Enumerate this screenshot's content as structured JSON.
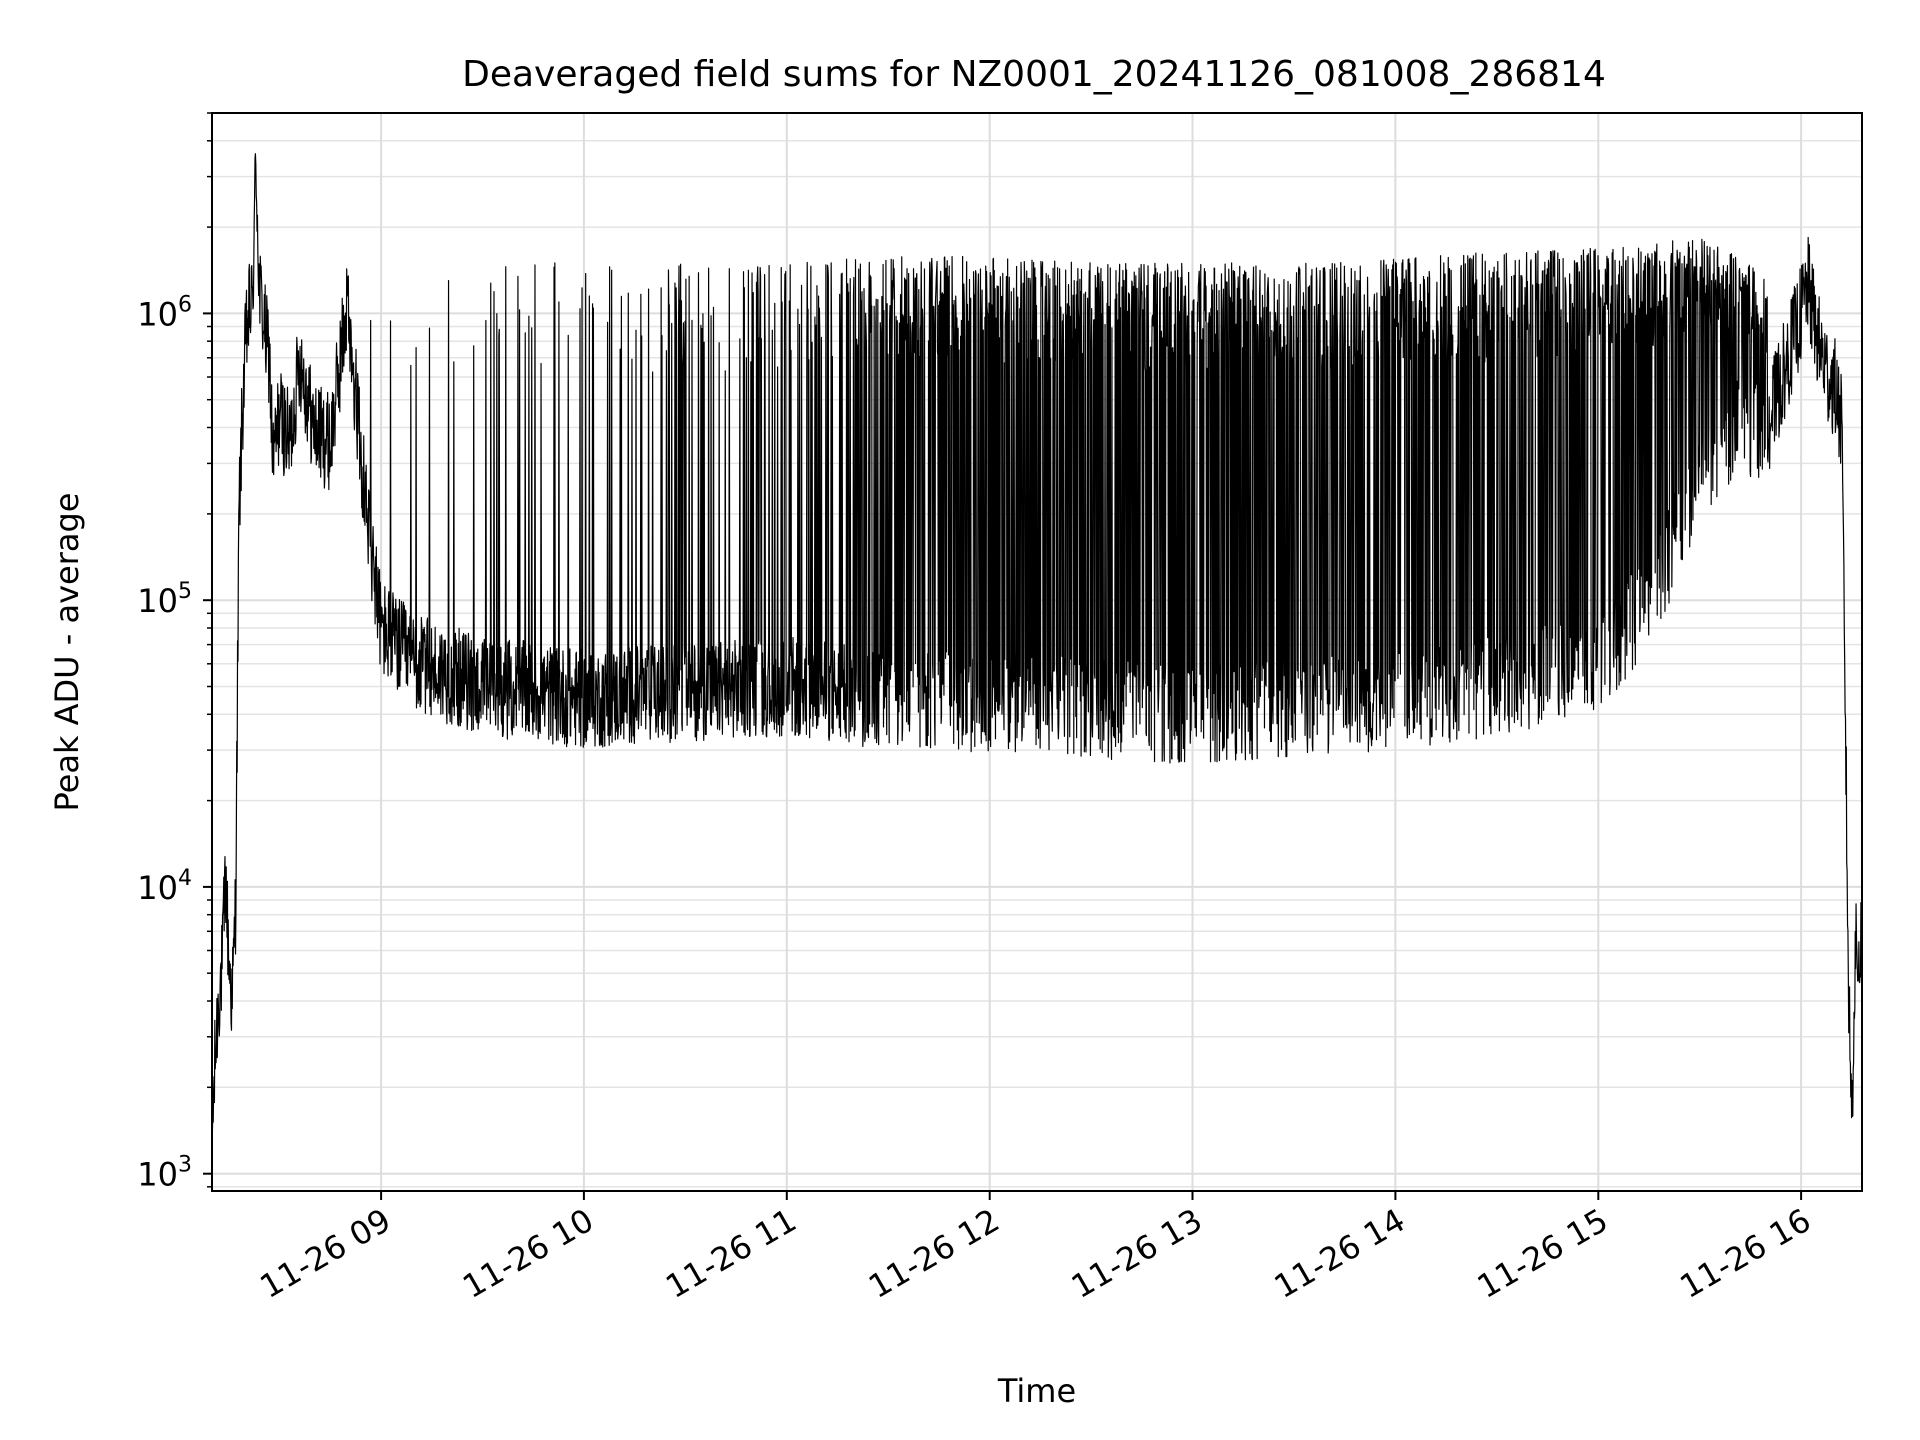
{
  "chart_data": {
    "type": "line",
    "title": "Deaveraged field sums for NZ0001_20241126_081008_286814",
    "xlabel": "Time",
    "ylabel": "Peak ADU - average",
    "x_scale": "time",
    "y_scale": "log",
    "xlim": [
      "2024-11-26 08:10",
      "2024-11-26 16:18"
    ],
    "ylim": [
      870,
      5000000
    ],
    "x_ticks": [
      "11-26 09",
      "11-26 10",
      "11-26 11",
      "11-26 12",
      "11-26 13",
      "11-26 14",
      "11-26 15",
      "11-26 16"
    ],
    "y_ticks": [
      {
        "base": "10",
        "exp": "3",
        "value": 1000
      },
      {
        "base": "10",
        "exp": "4",
        "value": 10000
      },
      {
        "base": "10",
        "exp": "5",
        "value": 100000
      },
      {
        "base": "10",
        "exp": "6",
        "value": 1000000
      }
    ],
    "grid": true,
    "line_color": "#000000",
    "series": [
      {
        "name": "",
        "points": [
          [
            "2024-11-26 08:10",
            1300
          ],
          [
            "2024-11-26 08:11",
            2600
          ],
          [
            "2024-11-26 08:12",
            4200
          ],
          [
            "2024-11-26 08:13",
            5200
          ],
          [
            "2024-11-26 08:14",
            11000
          ],
          [
            "2024-11-26 08:15",
            5500
          ],
          [
            "2024-11-26 08:16",
            4000
          ],
          [
            "2024-11-26 08:17",
            9000
          ],
          [
            "2024-11-26 08:18",
            200000
          ],
          [
            "2024-11-26 08:19",
            450000
          ],
          [
            "2024-11-26 08:20",
            800000
          ],
          [
            "2024-11-26 08:21",
            1000000
          ],
          [
            "2024-11-26 08:22",
            1100000
          ],
          [
            "2024-11-26 08:23",
            3500000
          ],
          [
            "2024-11-26 08:24",
            1200000
          ],
          [
            "2024-11-26 08:25",
            1000000
          ],
          [
            "2024-11-26 08:26",
            800000
          ],
          [
            "2024-11-26 08:27",
            700000
          ],
          [
            "2024-11-26 08:28",
            300000
          ],
          [
            "2024-11-26 08:30",
            450000
          ],
          [
            "2024-11-26 08:33",
            350000
          ],
          [
            "2024-11-26 08:36",
            700000
          ],
          [
            "2024-11-26 08:40",
            400000
          ],
          [
            "2024-11-26 08:45",
            350000
          ],
          [
            "2024-11-26 08:50",
            1100000
          ],
          [
            "2024-11-26 08:55",
            250000
          ],
          [
            "2024-11-26 09:00",
            80000
          ],
          [
            "2024-11-26 09:10",
            60000
          ],
          [
            "2024-11-26 09:20",
            55000
          ],
          [
            "2024-11-26 09:30",
            50000
          ],
          [
            "2024-11-26 09:45",
            48000
          ],
          [
            "2024-11-26 10:00",
            45000
          ],
          [
            "2024-11-26 10:30",
            48000
          ],
          [
            "2024-11-26 11:00",
            50000
          ],
          [
            "2024-11-26 11:30",
            45000
          ],
          [
            "2024-11-26 12:00",
            44000
          ],
          [
            "2024-11-26 12:30",
            42000
          ],
          [
            "2024-11-26 13:00",
            40000
          ],
          [
            "2024-11-26 13:30",
            42000
          ],
          [
            "2024-11-26 14:00",
            45000
          ],
          [
            "2024-11-26 14:30",
            50000
          ],
          [
            "2024-11-26 15:00",
            60000
          ],
          [
            "2024-11-26 15:15",
            100000
          ],
          [
            "2024-11-26 15:30",
            250000
          ],
          [
            "2024-11-26 15:40",
            400000
          ],
          [
            "2024-11-26 15:50",
            400000
          ],
          [
            "2024-11-26 16:00",
            1000000
          ],
          [
            "2024-11-26 16:02",
            1250000
          ],
          [
            "2024-11-26 16:05",
            800000
          ],
          [
            "2024-11-26 16:08",
            600000
          ],
          [
            "2024-11-26 16:10",
            550000
          ],
          [
            "2024-11-26 16:12",
            400000
          ],
          [
            "2024-11-26 16:13",
            50000
          ],
          [
            "2024-11-26 16:14",
            4500
          ],
          [
            "2024-11-26 16:15",
            1600
          ],
          [
            "2024-11-26 16:16",
            6000
          ],
          [
            "2024-11-26 16:17",
            5500
          ],
          [
            "2024-11-26 16:18",
            7000
          ]
        ],
        "spikes": [
          [
            "2024-11-26 08:55",
            1000000
          ],
          [
            "2024-11-26 09:05",
            1400000
          ],
          [
            "2024-11-26 09:25",
            1500000
          ],
          [
            "2024-11-26 09:40",
            1500000
          ],
          [
            "2024-11-26 10:00",
            1500000
          ],
          [
            "2024-11-26 10:30",
            1500000
          ],
          [
            "2024-11-26 11:00",
            1500000
          ],
          [
            "2024-11-26 11:30",
            1600000
          ],
          [
            "2024-11-26 12:00",
            1600000
          ],
          [
            "2024-11-26 12:30",
            1500000
          ],
          [
            "2024-11-26 13:00",
            1500000
          ],
          [
            "2024-11-26 13:30",
            1500000
          ],
          [
            "2024-11-26 14:00",
            1550000
          ],
          [
            "2024-11-26 14:30",
            1650000
          ],
          [
            "2024-11-26 15:00",
            1700000
          ],
          [
            "2024-11-26 15:30",
            1850000
          ],
          [
            "2024-11-26 15:50",
            1400000
          ]
        ]
      }
    ]
  }
}
